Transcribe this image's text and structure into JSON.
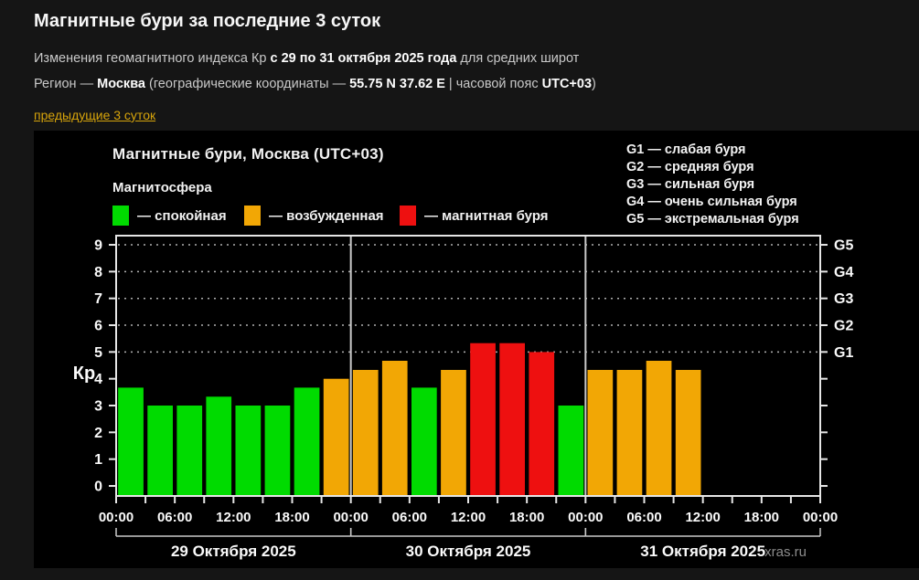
{
  "page": {
    "title": "Магнитные бури за последние 3 суток",
    "subtitle1_pre": "Изменения геомагнитного индекса Кр ",
    "subtitle1_bold": "с 29 по 31 октября 2025 года",
    "subtitle1_post": " для средних широт",
    "subtitle2_pre": "Регион — ",
    "region": "Москва",
    "subtitle2_mid": " (географические координаты — ",
    "coords": "55.75 N 37.62 E",
    "subtitle2_sep": " | часовой пояс ",
    "timezone": "UTC+03",
    "subtitle2_post": ")",
    "prev_link": "предыдущие 3 суток"
  },
  "chart": {
    "title": "Магнитные бури, Москва (UTC+03)",
    "legend_title": "Магнитосфера",
    "legend": [
      {
        "status": "quiet",
        "label": "— спокойная"
      },
      {
        "status": "excited",
        "label": "— возбужденная"
      },
      {
        "status": "storm",
        "label": "— магнитная буря"
      }
    ],
    "g_legend": [
      "G1 — слабая буря",
      "G2 — средняя буря",
      "G3 — сильная буря",
      "G4 — очень сильная буря",
      "G5 — экстремальная буря"
    ],
    "watermark": "xras.ru"
  },
  "chart_data": {
    "type": "bar",
    "ylabel": "Кр",
    "ylim": [
      0,
      9
    ],
    "yticks": [
      0,
      1,
      2,
      3,
      4,
      5,
      6,
      7,
      8,
      9
    ],
    "grid_levels": [
      5,
      6,
      7,
      8,
      9
    ],
    "right_axis_labels": [
      {
        "kp": 5,
        "label": "G1"
      },
      {
        "kp": 6,
        "label": "G2"
      },
      {
        "kp": 7,
        "label": "G3"
      },
      {
        "kp": 8,
        "label": "G4"
      },
      {
        "kp": 9,
        "label": "G5"
      }
    ],
    "time_labels": [
      "00:00",
      "06:00",
      "12:00",
      "18:00"
    ],
    "hours_per_bar": 3,
    "days": [
      {
        "date": "29 Октября 2025",
        "values": [
          3.67,
          3,
          3,
          3.33,
          3,
          3,
          3.67,
          4
        ],
        "statuses": [
          "quiet",
          "quiet",
          "quiet",
          "quiet",
          "quiet",
          "quiet",
          "quiet",
          "excited"
        ]
      },
      {
        "date": "30 Октября 2025",
        "values": [
          4.33,
          4.67,
          3.67,
          4.33,
          5.33,
          5.33,
          5,
          3
        ],
        "statuses": [
          "excited",
          "excited",
          "quiet",
          "excited",
          "storm",
          "storm",
          "storm",
          "quiet"
        ]
      },
      {
        "date": "31 Октября 2025",
        "values": [
          4.33,
          4.33,
          4.67,
          4.33,
          null,
          null,
          null,
          null
        ],
        "statuses": [
          "excited",
          "excited",
          "excited",
          "excited",
          null,
          null,
          null,
          null
        ]
      }
    ],
    "colors": {
      "quiet": "#00db00",
      "excited": "#f2a705",
      "storm": "#ee1010"
    },
    "axis_color": "#e6e6e6",
    "grid_color": "#b0b0b0",
    "separator_color": "#c9c9c9",
    "text_color": "#fafafa",
    "watermark_color": "#8c8c8c"
  }
}
